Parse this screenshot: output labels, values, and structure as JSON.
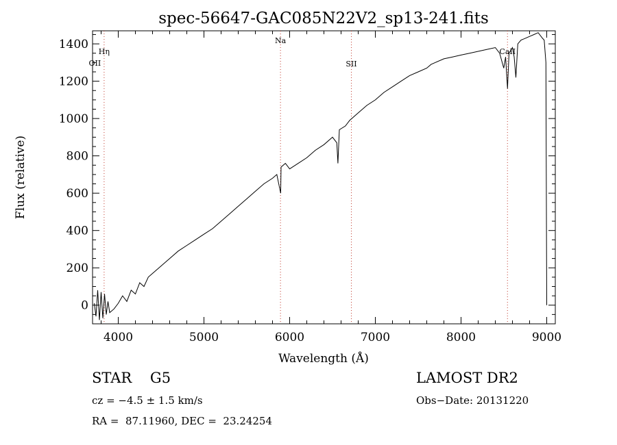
{
  "chart_data": {
    "type": "line",
    "title": "spec-56647-GAC085N22V2_sp13-241.fits",
    "xlabel": "Wavelength (Å)",
    "ylabel": "Flux (relative)",
    "xlim": [
      3700,
      9100
    ],
    "ylim": [
      -100,
      1470
    ],
    "xticks": [
      4000,
      5000,
      6000,
      7000,
      8000,
      9000
    ],
    "yticks": [
      0,
      200,
      400,
      600,
      800,
      1000,
      1200,
      1400
    ],
    "grid": false,
    "series": [
      {
        "x": [
          3720,
          3740,
          3760,
          3780,
          3800,
          3820,
          3840,
          3860,
          3880,
          3900,
          3950,
          4000,
          4050,
          4100,
          4150,
          4200,
          4250,
          4300,
          4350,
          4400,
          4500,
          4600,
          4700,
          4800,
          4900,
          5000,
          5100,
          5200,
          5300,
          5400,
          5500,
          5600,
          5700,
          5800,
          5850,
          5895,
          5900,
          5950,
          6000,
          6100,
          6200,
          6300,
          6400,
          6500,
          6550,
          6563,
          6580,
          6650,
          6700,
          6800,
          6900,
          7000,
          7100,
          7200,
          7300,
          7400,
          7500,
          7600,
          7650,
          7700,
          7800,
          7900,
          8000,
          8100,
          8200,
          8300,
          8400,
          8450,
          8498,
          8520,
          8542,
          8560,
          8600,
          8620,
          8640,
          8662,
          8700,
          8750,
          8800,
          8850,
          8900,
          8950,
          8970,
          8990,
          9000
        ],
        "y": [
          10,
          -60,
          80,
          -80,
          70,
          -70,
          60,
          -50,
          20,
          -40,
          -20,
          10,
          50,
          20,
          80,
          60,
          120,
          100,
          150,
          170,
          210,
          250,
          290,
          320,
          350,
          380,
          410,
          450,
          490,
          530,
          570,
          610,
          650,
          680,
          700,
          600,
          740,
          760,
          730,
          760,
          790,
          830,
          860,
          900,
          870,
          760,
          940,
          960,
          990,
          1030,
          1070,
          1100,
          1140,
          1170,
          1200,
          1230,
          1250,
          1270,
          1290,
          1300,
          1320,
          1330,
          1340,
          1350,
          1360,
          1370,
          1380,
          1350,
          1270,
          1330,
          1160,
          1350,
          1380,
          1330,
          1220,
          1400,
          1420,
          1430,
          1440,
          1450,
          1460,
          1430,
          1420,
          1300,
          0
        ]
      }
    ],
    "lines": [
      {
        "label": "Hη",
        "x": 3835
      },
      {
        "label": "OII",
        "x": 3727
      },
      {
        "label": "Na",
        "x": 5893
      },
      {
        "label": "SII",
        "x": 6720
      },
      {
        "label": "CaII",
        "x": 8542
      }
    ]
  },
  "info": {
    "class_line": "STAR    G5",
    "survey": "LAMOST DR2",
    "cz": "cz = −4.5 ± 1.5 km/s",
    "obs_date": "Obs−Date: 20131220",
    "coords": "RA =  87.11960, DEC =  23.24254"
  }
}
